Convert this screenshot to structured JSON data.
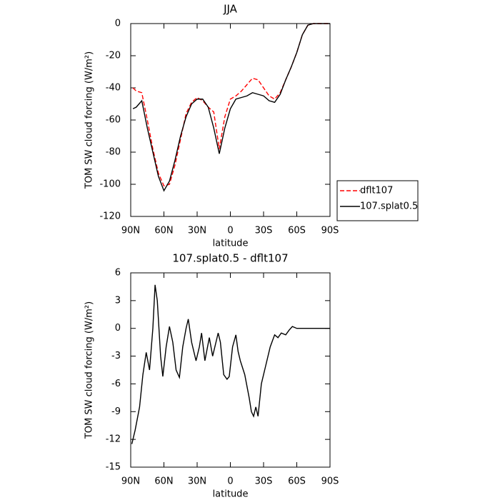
{
  "chart_data": [
    {
      "type": "line",
      "title": "JJA",
      "xlabel": "latitude",
      "ylabel": "TOM SW cloud forcing (W/m²)",
      "x": [
        88,
        85,
        80,
        75,
        70,
        65,
        60,
        55,
        50,
        45,
        40,
        35,
        30,
        25,
        20,
        15,
        10,
        5,
        0,
        -5,
        -10,
        -15,
        -20,
        -25,
        -30,
        -35,
        -40,
        -45,
        -50,
        -55,
        -60,
        -65,
        -70,
        -75,
        -80,
        -85,
        -90
      ],
      "series": [
        {
          "name": "dflt107",
          "color": "#ff0000",
          "linestyle": "dashed",
          "values": [
            -40,
            -42,
            -43,
            -60,
            -78,
            -93,
            -101,
            -100,
            -88,
            -72,
            -56,
            -49,
            -46,
            -48,
            -52,
            -55,
            -78,
            -58,
            -47,
            -45,
            -42,
            -38,
            -34,
            -35,
            -40,
            -45,
            -47,
            -43,
            -35,
            -27,
            -18,
            -7,
            -1,
            0,
            0,
            0,
            0
          ]
        },
        {
          "name": "107.splat0.5",
          "color": "#000000",
          "linestyle": "solid",
          "values": [
            -53,
            -52,
            -48,
            -65,
            -80,
            -95,
            -104,
            -98,
            -85,
            -70,
            -58,
            -50,
            -47,
            -47,
            -52,
            -65,
            -81,
            -65,
            -53,
            -47,
            -46,
            -45,
            -43,
            -44,
            -45,
            -48,
            -49,
            -44,
            -35,
            -27,
            -18,
            -7,
            -1,
            0,
            0,
            0,
            0
          ]
        }
      ],
      "xlim": [
        90,
        -90
      ],
      "xticks": [
        {
          "value": 90,
          "label": "90N"
        },
        {
          "value": 60,
          "label": "60N"
        },
        {
          "value": 30,
          "label": "30N"
        },
        0,
        {
          "value": -30,
          "label": "30S"
        },
        {
          "value": -60,
          "label": "60S"
        },
        {
          "value": -90,
          "label": "90S"
        }
      ],
      "ylim": [
        -120,
        0
      ],
      "yticks": [
        -120,
        -100,
        -80,
        -60,
        -40,
        -20,
        0
      ],
      "legend": "outside-right"
    },
    {
      "type": "line",
      "title": "107.splat0.5 - dflt107",
      "xlabel": "latitude",
      "ylabel": "TOM SW cloud forcing (W/m²)",
      "x": [
        89,
        86,
        82,
        79,
        76,
        73,
        70,
        68,
        66,
        63,
        61,
        58,
        55,
        52,
        49,
        46,
        43,
        40,
        38,
        35,
        31,
        28,
        26,
        23,
        19,
        16,
        13,
        11,
        9,
        6,
        3,
        1,
        -2,
        -5,
        -7,
        -9,
        -13,
        -17,
        -19,
        -21,
        -23,
        -25,
        -28,
        -32,
        -36,
        -40,
        -43,
        -46,
        -50,
        -53,
        -56,
        -60,
        -65,
        -90
      ],
      "series": [
        {
          "color": "#000000",
          "linestyle": "solid",
          "values": [
            -12.5,
            -11,
            -8.5,
            -5,
            -2.6,
            -4.5,
            0,
            4.7,
            3,
            -3,
            -5.2,
            -2,
            0.2,
            -1.5,
            -4.5,
            -5.3,
            -2,
            0,
            1,
            -1.5,
            -3.5,
            -2,
            -0.5,
            -3.5,
            -1,
            -3,
            -1.5,
            -0.5,
            -1.5,
            -5,
            -5.5,
            -5.2,
            -2,
            -0.7,
            -2.5,
            -3.5,
            -5,
            -7.5,
            -9,
            -9.5,
            -8.5,
            -9.5,
            -6,
            -4,
            -2,
            -0.7,
            -1,
            -0.5,
            -0.7,
            -0.2,
            0.2,
            0,
            0,
            0
          ]
        }
      ],
      "xlim": [
        90,
        -90
      ],
      "xticks": [
        {
          "value": 90,
          "label": "90N"
        },
        {
          "value": 60,
          "label": "60N"
        },
        {
          "value": 30,
          "label": "30N"
        },
        0,
        {
          "value": -30,
          "label": "30S"
        },
        {
          "value": -60,
          "label": "60S"
        },
        {
          "value": -90,
          "label": "90S"
        }
      ],
      "ylim": [
        -15,
        6
      ],
      "yticks": [
        -15,
        -12,
        -9,
        -6,
        -3,
        0,
        3,
        6
      ]
    }
  ]
}
